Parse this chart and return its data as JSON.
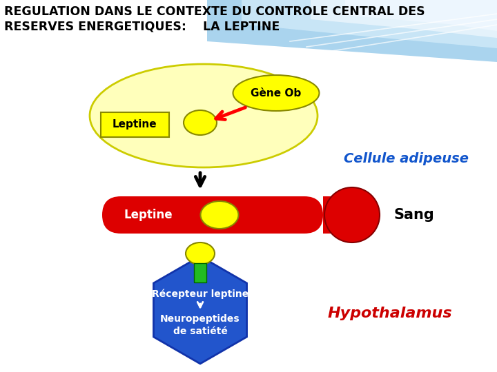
{
  "title_line1": "REGULATION DANS LE CONTEXTE DU CONTROLE CENTRAL DES",
  "title_line2": "RESERVES ENERGETIQUES:    LA LEPTINE",
  "bg_color": "#ffffff",
  "title_color": "#000000",
  "title_fontsize": 12.5,
  "cellule_adipeuse_color": "#1155cc",
  "cellule_adipeuse_text": "Cellule adipeuse",
  "sang_text": "Sang",
  "hypothalamus_text": "Hypothalamus",
  "hypothalamus_color": "#cc0000",
  "gene_ob_text": "Gène Ob",
  "leptine_text1": "Leptine",
  "leptine_text2": "Leptine",
  "recepteur_text": "Récepteur leptine",
  "neuropeptides_text": "Neuropeptides\nde satiété",
  "yellow": "#ffff00",
  "red": "#dd0000",
  "blue": "#2255cc",
  "green": "#22bb22",
  "light_yellow_ellipse": "#ffffbb",
  "header_blue_dark": "#55aadd",
  "header_blue_mid": "#88ccee",
  "header_blue_light": "#bbddff"
}
